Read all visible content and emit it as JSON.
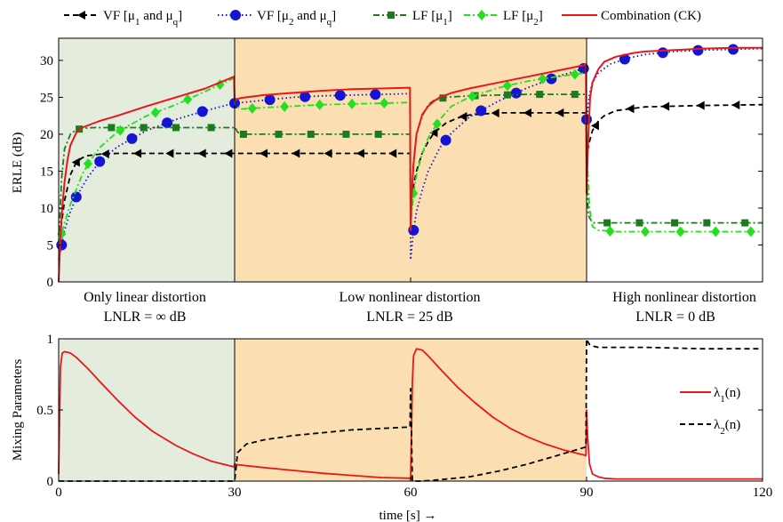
{
  "legend": {
    "vf1": {
      "a": "VF [μ",
      "s1": "1",
      "b": " and μ",
      "s2": "q",
      "c": "]"
    },
    "vf2": {
      "a": "VF [μ",
      "s1": "2",
      "b": " and μ",
      "s2": "q",
      "c": "]"
    },
    "lf1": {
      "a": "LF [μ",
      "s1": "1",
      "c": "]"
    },
    "lf2": {
      "a": "LF [μ",
      "s1": "2",
      "c": "]"
    },
    "comb": "Combination (CK)"
  },
  "regions": [
    {
      "line1": "Only linear distortion",
      "line2": "LNLR = ∞ dB",
      "color": "#e3ecdd"
    },
    {
      "line1": "Low nonlinear distortion",
      "line2": "LNLR = 25 dB",
      "color": "#fbdfb2"
    },
    {
      "line1": "High nonlinear distortion",
      "line2": "LNLR = 0 dB",
      "color": "#ffffff"
    }
  ],
  "top_ylabel": "ERLE (dB)",
  "bottom_ylabel": "Mixing Parameters",
  "bottom_xlabel": "time [s] →",
  "mix_legend": {
    "l1": {
      "a": "λ",
      "s": "1",
      "b": "(n)"
    },
    "l2": {
      "a": "λ",
      "s": "2",
      "b": "(n)"
    }
  },
  "colors": {
    "vf1": "#000000",
    "vf2": "#1414d2",
    "lf1": "#1e7a1e",
    "lf2": "#22e01e",
    "comb": "#e81818"
  },
  "chart_data": [
    {
      "type": "line",
      "ylabel": "ERLE (dB)",
      "xlim": [
        0,
        120
      ],
      "ylim": [
        0,
        33
      ],
      "yticks": [
        0,
        5,
        10,
        15,
        20,
        25,
        30
      ],
      "series": [
        {
          "name": "VF [μ1 and μq]",
          "style": "dashed",
          "marker": "triangle-left",
          "x": [
            0,
            1,
            2,
            3,
            4,
            5,
            7,
            10,
            15,
            20,
            25,
            29.9,
            30,
            35,
            40,
            45,
            50,
            55,
            59.9,
            60,
            60.5,
            61,
            62,
            63,
            64,
            66,
            68,
            70,
            75,
            80,
            85,
            89.9,
            90,
            90.5,
            91,
            92,
            93,
            95,
            100,
            110,
            120
          ],
          "y": [
            5,
            11,
            14.5,
            16.2,
            16.8,
            17.1,
            17.3,
            17.4,
            17.4,
            17.4,
            17.4,
            17.4,
            17.4,
            17.4,
            17.4,
            17.4,
            17.4,
            17.4,
            17.4,
            11,
            13,
            15,
            17.5,
            19,
            20.2,
            21.5,
            22.2,
            22.6,
            22.9,
            22.9,
            22.9,
            22.9,
            17,
            19,
            20.5,
            21.8,
            22.5,
            23.2,
            23.7,
            23.9,
            24.0
          ]
        },
        {
          "name": "VF [μ2 and μq]",
          "style": "dotted",
          "marker": "circle",
          "x": [
            0,
            0.5,
            1,
            2,
            3,
            5,
            7,
            10,
            15,
            20,
            25,
            29.9,
            30,
            35,
            40,
            45,
            50,
            55,
            59.9,
            60,
            60.5,
            61,
            62,
            63,
            65,
            67,
            70,
            75,
            80,
            85,
            89.9,
            90,
            90.5,
            91,
            92,
            94,
            97,
            100,
            105,
            110,
            115,
            120
          ],
          "y": [
            3,
            5,
            7,
            9.5,
            11.5,
            14.2,
            16.3,
            18.3,
            20.5,
            22.0,
            23.2,
            24.2,
            24.2,
            24.6,
            25.0,
            25.2,
            25.3,
            25.4,
            25.5,
            3,
            7,
            9.5,
            12.5,
            15,
            18.2,
            20.2,
            22.3,
            24.5,
            26.3,
            27.8,
            29.0,
            22,
            25.5,
            27,
            28.3,
            29.5,
            30.3,
            30.8,
            31.2,
            31.4,
            31.5,
            31.6
          ]
        },
        {
          "name": "LF [μ1]",
          "style": "dashdot",
          "marker": "square",
          "x": [
            0,
            0.5,
            1,
            2,
            3,
            4,
            6,
            10,
            15,
            20,
            25,
            29.9,
            30,
            30.5,
            31,
            35,
            40,
            45,
            50,
            55,
            59.9,
            60,
            60.5,
            61,
            62,
            63,
            64,
            66,
            70,
            75,
            80,
            85,
            89.9,
            90,
            90.3,
            91,
            92,
            95,
            100,
            110,
            120
          ],
          "y": [
            5,
            14,
            18,
            20,
            20.6,
            20.8,
            20.9,
            20.9,
            20.9,
            20.9,
            20.9,
            20.9,
            21,
            20.3,
            20.0,
            20.0,
            20.0,
            20.0,
            20.0,
            20.0,
            20.0,
            9,
            16,
            20,
            22.5,
            24,
            24.6,
            25.0,
            25.2,
            25.3,
            25.4,
            25.4,
            25.4,
            14,
            9,
            8,
            8.0,
            8.0,
            8.0,
            8.0,
            8.0
          ]
        },
        {
          "name": "LF [μ2]",
          "style": "dashdot",
          "marker": "diamond",
          "x": [
            0,
            0.5,
            1,
            2,
            3,
            4,
            5,
            7,
            10,
            15,
            20,
            25,
            29.9,
            30,
            31,
            35,
            40,
            45,
            50,
            55,
            59.9,
            60,
            60.5,
            61,
            62,
            63,
            65,
            67,
            70,
            75,
            80,
            85,
            89.9,
            90,
            90.5,
            91,
            92,
            95,
            100,
            110,
            120
          ],
          "y": [
            5,
            6.5,
            8,
            10.5,
            12.5,
            14.5,
            16,
            18.2,
            20.3,
            22.5,
            24.0,
            25.8,
            27.6,
            24,
            23.4,
            23.6,
            23.8,
            24.0,
            24.1,
            24.2,
            24.3,
            8,
            12,
            14.5,
            17.5,
            19.5,
            22,
            23.8,
            25.0,
            26.3,
            27.2,
            27.8,
            28.3,
            18,
            10,
            7.5,
            7.0,
            6.8,
            6.8,
            6.8,
            6.8
          ]
        },
        {
          "name": "Combination (CK)",
          "style": "solid",
          "marker": "none",
          "x": [
            0,
            0.3,
            0.6,
            1,
            1.5,
            2,
            3,
            4,
            5,
            7,
            10,
            15,
            20,
            25,
            29.9,
            30,
            30.5,
            31,
            35,
            40,
            45,
            50,
            55,
            59.9,
            60,
            60.2,
            60.5,
            61,
            62,
            63,
            64,
            65,
            67,
            70,
            75,
            80,
            85,
            89.9,
            90,
            90.3,
            90.6,
            91,
            92,
            93,
            95,
            98,
            100,
            105,
            110,
            115,
            120
          ],
          "y": [
            0,
            6,
            10,
            13.5,
            16.5,
            18.5,
            20.2,
            20.9,
            21.2,
            21.8,
            22.5,
            23.8,
            25.0,
            26.2,
            27.8,
            24.5,
            24.8,
            24.9,
            25.3,
            25.6,
            25.9,
            26.1,
            26.2,
            26.3,
            7,
            12,
            16,
            20,
            22.7,
            23.8,
            24.5,
            25.0,
            25.6,
            26.2,
            27.0,
            27.8,
            28.6,
            29.4,
            12,
            20,
            25,
            27,
            28.8,
            29.8,
            30.5,
            31.0,
            31.2,
            31.4,
            31.6,
            31.7,
            31.7
          ]
        }
      ]
    },
    {
      "type": "line",
      "ylabel": "Mixing Parameters",
      "xlabel": "time [s] →",
      "xlim": [
        0,
        120
      ],
      "ylim": [
        0,
        1
      ],
      "xticks": [
        0,
        30,
        60,
        90,
        120
      ],
      "yticks": [
        0,
        0.5,
        1
      ],
      "series": [
        {
          "name": "λ1(n)",
          "style": "solid",
          "x": [
            0,
            0.3,
            0.6,
            1,
            2,
            3,
            5,
            7,
            10,
            13,
            16,
            20,
            23,
            26,
            29.9,
            30,
            30.5,
            35,
            40,
            45,
            50,
            55,
            59.9,
            60,
            60.3,
            60.5,
            61,
            62,
            63,
            65,
            68,
            71,
            74,
            77,
            80,
            83,
            86,
            89.9,
            90,
            90.2,
            90.5,
            91,
            92,
            93,
            95,
            100,
            110,
            120
          ],
          "y": [
            0.05,
            0.8,
            0.9,
            0.91,
            0.9,
            0.87,
            0.79,
            0.7,
            0.57,
            0.45,
            0.35,
            0.25,
            0.19,
            0.14,
            0.1,
            0.12,
            0.115,
            0.095,
            0.075,
            0.055,
            0.04,
            0.025,
            0.02,
            0.01,
            0.7,
            0.88,
            0.93,
            0.92,
            0.88,
            0.79,
            0.66,
            0.55,
            0.45,
            0.37,
            0.31,
            0.26,
            0.22,
            0.18,
            0.5,
            0.3,
            0.12,
            0.05,
            0.03,
            0.02,
            0.015,
            0.015,
            0.015,
            0.015
          ]
        },
        {
          "name": "λ2(n)",
          "style": "dashed",
          "x": [
            0,
            29.9,
            30,
            30.5,
            32,
            35,
            40,
            45,
            50,
            55,
            59.9,
            60,
            60.3,
            62,
            65,
            70,
            75,
            80,
            85,
            89.9,
            90,
            90.2,
            90.5,
            91,
            92,
            95,
            100,
            110,
            120
          ],
          "y": [
            0,
            0,
            0.0,
            0.2,
            0.26,
            0.29,
            0.32,
            0.34,
            0.36,
            0.37,
            0.38,
            0.65,
            0.0,
            0.0,
            0.01,
            0.03,
            0.07,
            0.12,
            0.18,
            0.24,
            1.0,
            0.98,
            0.96,
            0.95,
            0.94,
            0.94,
            0.94,
            0.93,
            0.93
          ]
        }
      ]
    }
  ]
}
